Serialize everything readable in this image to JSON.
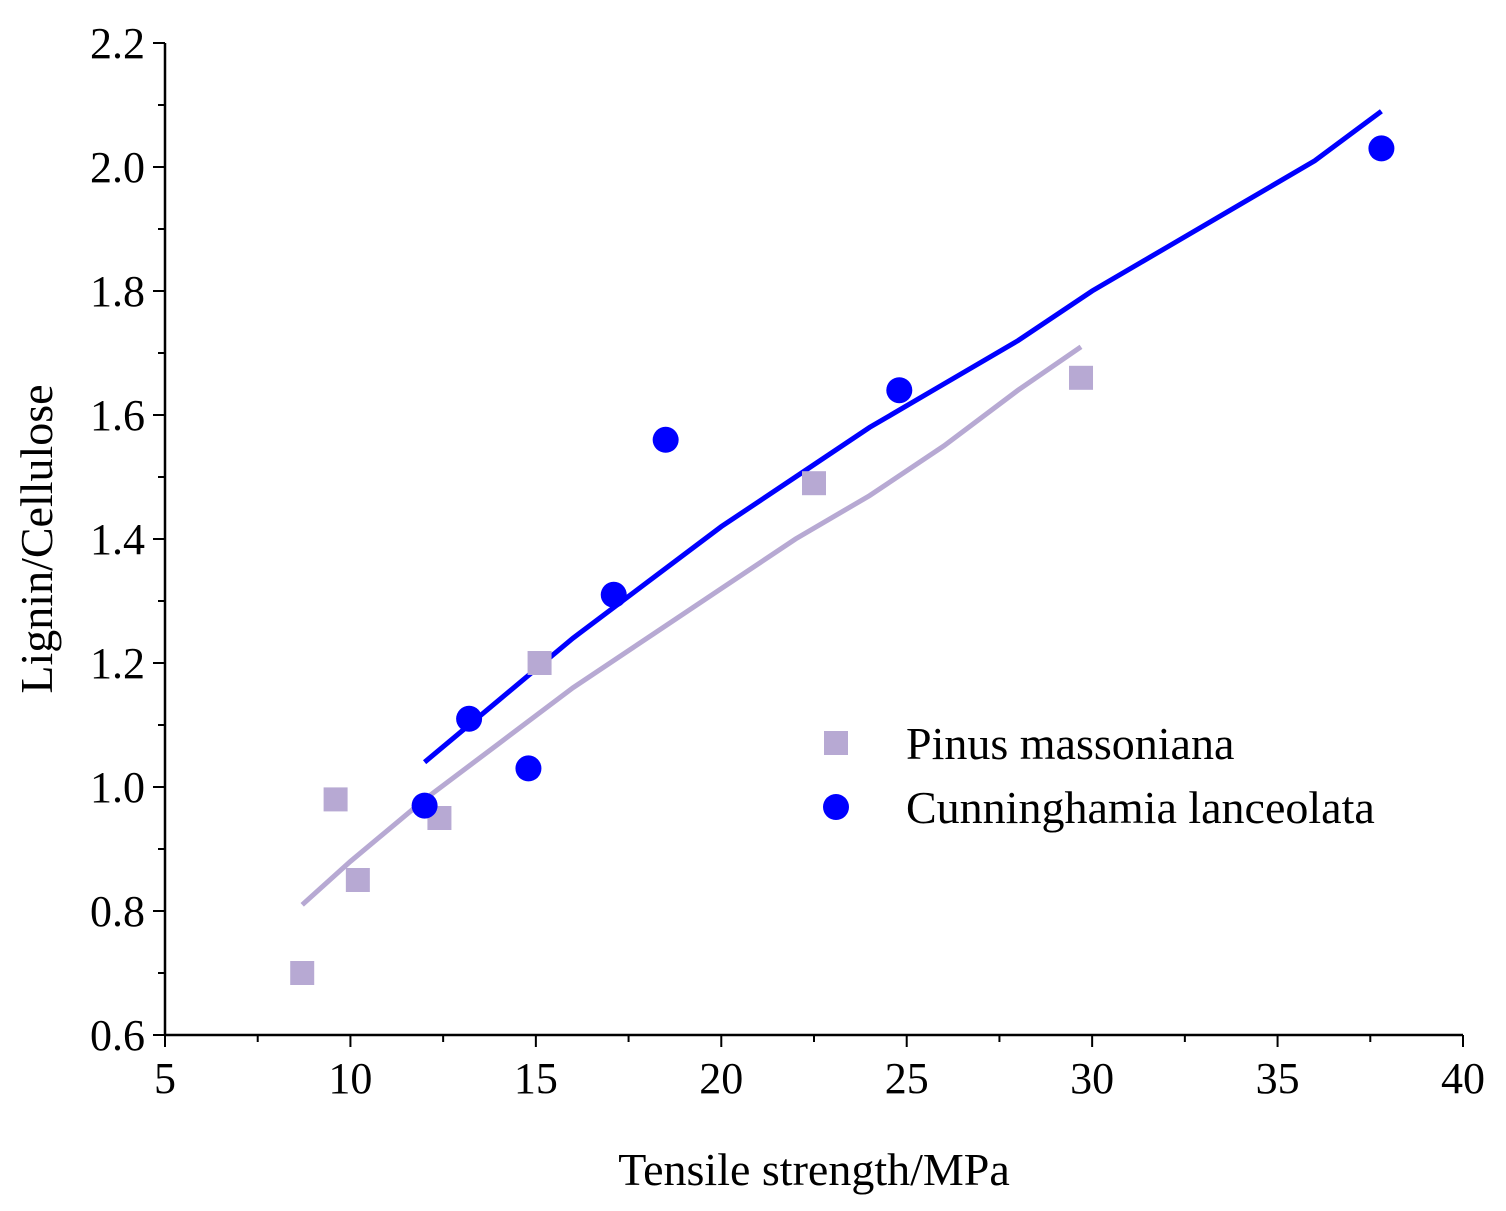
{
  "chart_data": {
    "type": "scatter",
    "xlabel": "Tensile strength/MPa",
    "ylabel": "Lignin/Cellulose",
    "xlim": [
      5,
      40
    ],
    "ylim": [
      0.6,
      2.2
    ],
    "x_ticks": [
      5,
      10,
      15,
      20,
      25,
      30,
      35,
      40
    ],
    "y_ticks": [
      0.6,
      0.8,
      1.0,
      1.2,
      1.4,
      1.6,
      1.8,
      2.0,
      2.2
    ],
    "x_tick_labels": [
      "5",
      "10",
      "15",
      "20",
      "25",
      "30",
      "35",
      "40"
    ],
    "y_tick_labels": [
      "0.6",
      "0.8",
      "1.0",
      "1.2",
      "1.4",
      "1.6",
      "1.8",
      "2.0",
      "2.2"
    ],
    "grid": false,
    "legend_position": "right",
    "series": [
      {
        "name": "Pinus massoniana",
        "marker": "square",
        "color": "#b7a9d3",
        "points": [
          {
            "x": 8.7,
            "y": 0.7
          },
          {
            "x": 9.6,
            "y": 0.98
          },
          {
            "x": 10.2,
            "y": 0.85
          },
          {
            "x": 12.4,
            "y": 0.95
          },
          {
            "x": 15.1,
            "y": 1.2
          },
          {
            "x": 22.5,
            "y": 1.49
          },
          {
            "x": 29.7,
            "y": 1.66
          }
        ],
        "fit_line": {
          "color": "#b7a9d3",
          "points": [
            {
              "x": 8.7,
              "y": 0.81
            },
            {
              "x": 10.0,
              "y": 0.88
            },
            {
              "x": 12.0,
              "y": 0.98
            },
            {
              "x": 14.0,
              "y": 1.07
            },
            {
              "x": 16.0,
              "y": 1.16
            },
            {
              "x": 18.0,
              "y": 1.24
            },
            {
              "x": 20.0,
              "y": 1.32
            },
            {
              "x": 22.0,
              "y": 1.4
            },
            {
              "x": 24.0,
              "y": 1.47
            },
            {
              "x": 26.0,
              "y": 1.55
            },
            {
              "x": 28.0,
              "y": 1.64
            },
            {
              "x": 29.7,
              "y": 1.71
            }
          ]
        }
      },
      {
        "name": "Cunninghamia lanceolata",
        "marker": "circle",
        "color": "#0000ff",
        "points": [
          {
            "x": 12.0,
            "y": 0.97
          },
          {
            "x": 13.2,
            "y": 1.11
          },
          {
            "x": 14.8,
            "y": 1.03
          },
          {
            "x": 17.1,
            "y": 1.31
          },
          {
            "x": 18.5,
            "y": 1.56
          },
          {
            "x": 24.8,
            "y": 1.64
          },
          {
            "x": 37.8,
            "y": 2.03
          }
        ],
        "fit_line": {
          "color": "#0000ff",
          "points": [
            {
              "x": 12.0,
              "y": 1.04
            },
            {
              "x": 14.0,
              "y": 1.14
            },
            {
              "x": 16.0,
              "y": 1.24
            },
            {
              "x": 18.0,
              "y": 1.33
            },
            {
              "x": 20.0,
              "y": 1.42
            },
            {
              "x": 22.0,
              "y": 1.5
            },
            {
              "x": 24.0,
              "y": 1.58
            },
            {
              "x": 26.0,
              "y": 1.65
            },
            {
              "x": 28.0,
              "y": 1.72
            },
            {
              "x": 30.0,
              "y": 1.8
            },
            {
              "x": 32.0,
              "y": 1.87
            },
            {
              "x": 34.0,
              "y": 1.94
            },
            {
              "x": 36.0,
              "y": 2.01
            },
            {
              "x": 37.8,
              "y": 2.09
            }
          ]
        }
      }
    ]
  }
}
